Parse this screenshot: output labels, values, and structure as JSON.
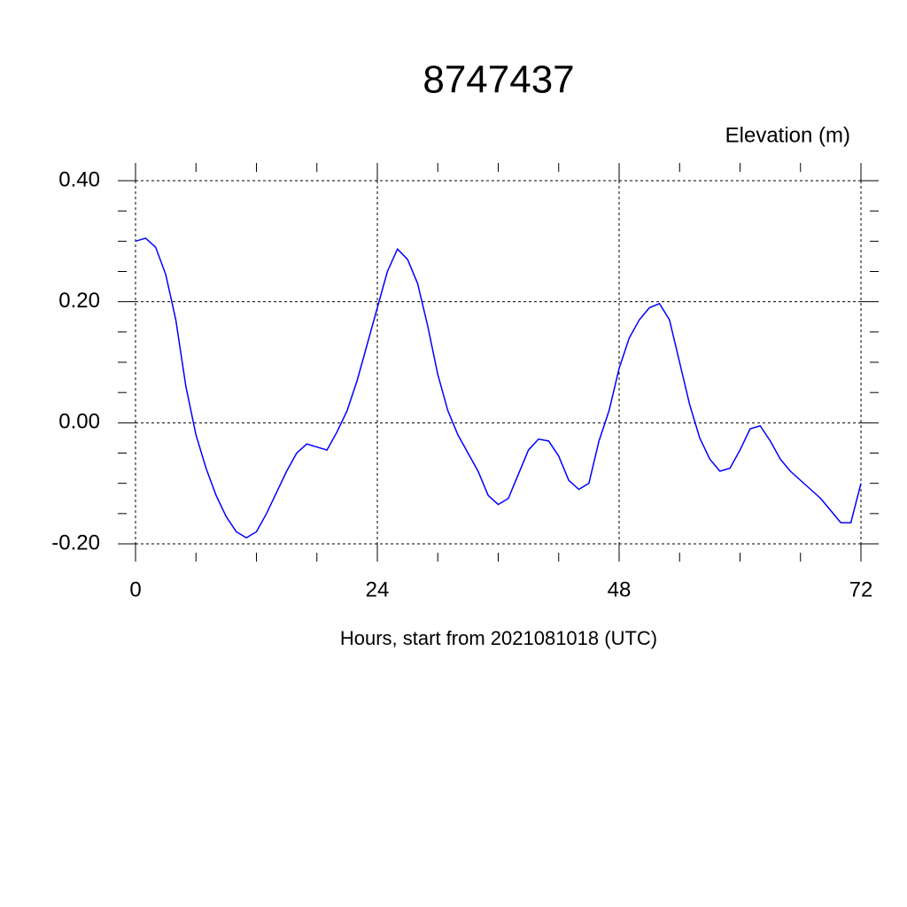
{
  "chart_data": {
    "type": "line",
    "title": "8747437",
    "y_label": "Elevation (m)",
    "x_label": "Hours, start from 2021081018 (UTC)",
    "x": [
      0,
      1,
      2,
      3,
      4,
      5,
      6,
      7,
      8,
      9,
      10,
      11,
      12,
      13,
      14,
      15,
      16,
      17,
      18,
      19,
      20,
      21,
      22,
      23,
      24,
      25,
      26,
      27,
      28,
      29,
      30,
      31,
      32,
      33,
      34,
      35,
      36,
      37,
      38,
      39,
      40,
      41,
      42,
      43,
      44,
      45,
      46,
      47,
      48,
      49,
      50,
      51,
      52,
      53,
      54,
      55,
      56,
      57,
      58,
      59,
      60,
      61,
      62,
      63,
      64,
      65,
      66,
      67,
      68,
      69,
      70,
      71,
      72
    ],
    "series": [
      {
        "color": "#0000ff",
        "values": [
          0.3,
          0.305,
          0.29,
          0.245,
          0.17,
          0.06,
          -0.02,
          -0.075,
          -0.12,
          -0.155,
          -0.18,
          -0.19,
          -0.18,
          -0.15,
          -0.115,
          -0.08,
          -0.05,
          -0.035,
          -0.04,
          -0.045,
          -0.015,
          0.02,
          0.07,
          0.13,
          0.19,
          0.25,
          0.287,
          0.27,
          0.23,
          0.16,
          0.08,
          0.02,
          -0.02,
          -0.05,
          -0.08,
          -0.12,
          -0.135,
          -0.125,
          -0.085,
          -0.045,
          -0.027,
          -0.03,
          -0.055,
          -0.095,
          -0.11,
          -0.1,
          -0.03,
          0.02,
          0.09,
          0.14,
          0.17,
          0.19,
          0.197,
          0.17,
          0.1,
          0.03,
          -0.025,
          -0.06,
          -0.08,
          -0.075,
          -0.045,
          -0.01,
          -0.005,
          -0.03,
          -0.06,
          -0.08,
          -0.095,
          -0.11,
          -0.125,
          -0.145,
          -0.165,
          -0.165,
          -0.1
        ]
      }
    ],
    "xlim": [
      0,
      72
    ],
    "ylim": [
      -0.2,
      0.4
    ],
    "xticks": [
      0,
      24,
      48,
      72
    ],
    "yticks": [
      {
        "value": -0.2,
        "label": "-0.20"
      },
      {
        "value": 0,
        "label": "0.00"
      },
      {
        "value": 0.2,
        "label": "0.20"
      },
      {
        "value": 0.4,
        "label": "0.40"
      }
    ],
    "grid": true
  }
}
